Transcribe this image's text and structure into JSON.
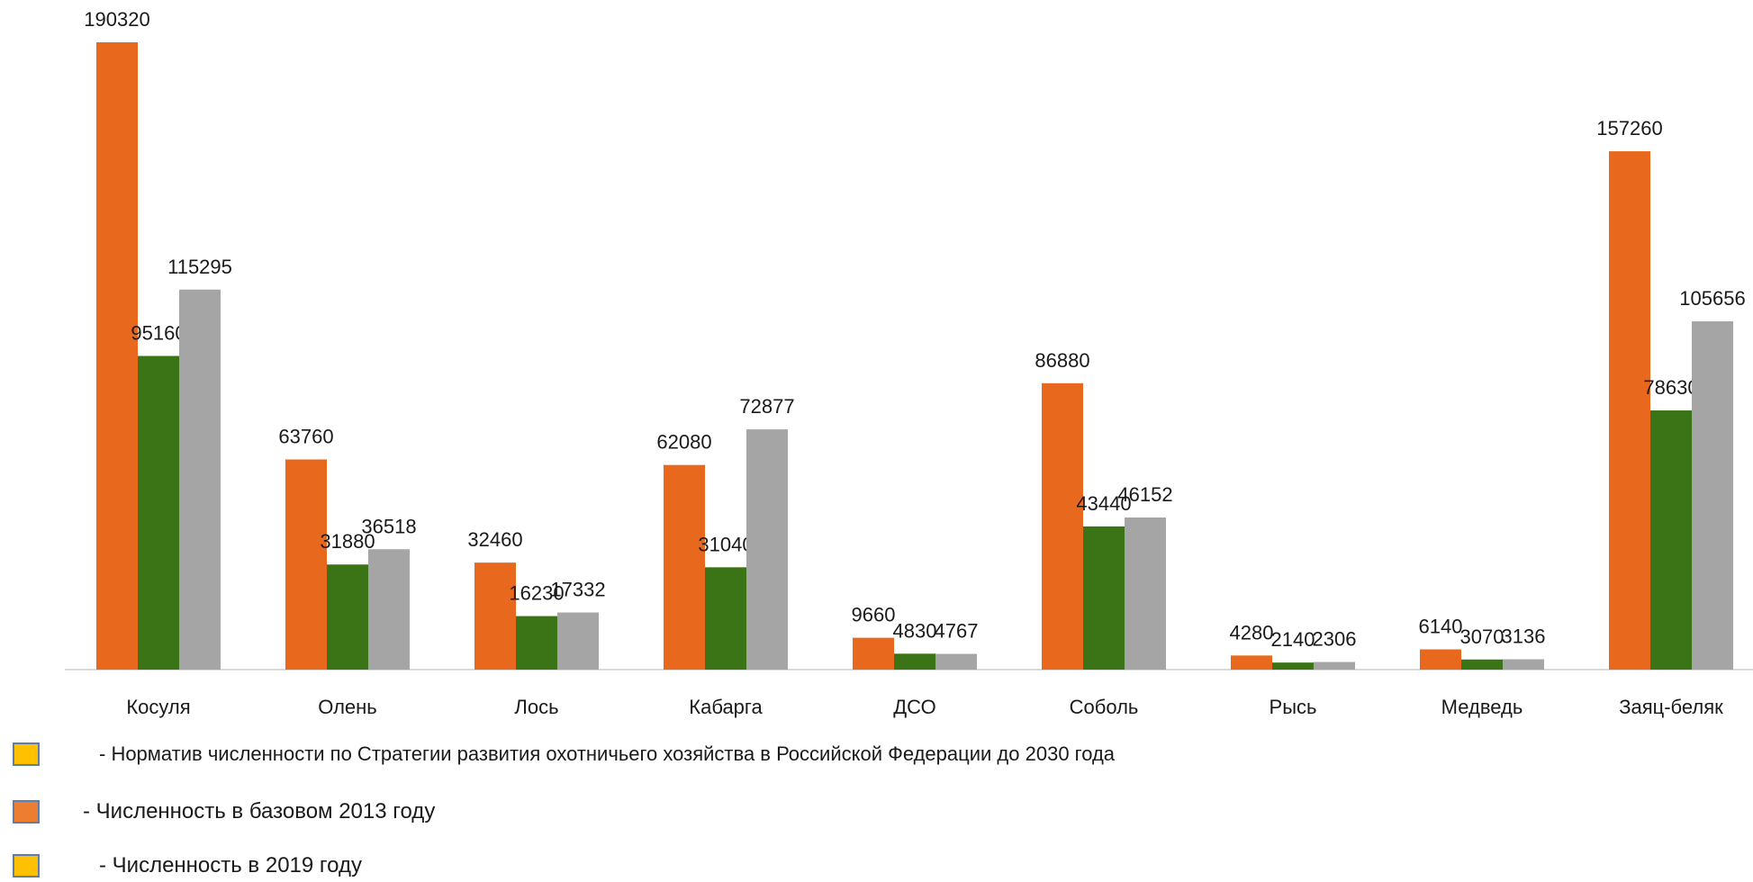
{
  "chart_data": {
    "type": "bar",
    "categories": [
      "Косуля",
      "Олень",
      "Лось",
      "Кабарга",
      "ДСО",
      "Соболь",
      "Рысь",
      "Медведь",
      "Заяц-беляк"
    ],
    "series": [
      {
        "values": [
          190320,
          63760,
          32460,
          62080,
          9660,
          86880,
          4280,
          6140,
          157260
        ],
        "color": "#e8691d"
      },
      {
        "values": [
          95160,
          31880,
          16230,
          31040,
          4830,
          43440,
          2140,
          3070,
          78630
        ],
        "color": "#3a7417"
      },
      {
        "values": [
          115295,
          36518,
          17332,
          72877,
          4767,
          46152,
          2306,
          3136,
          105656
        ],
        "color": "#a5a5a5"
      }
    ],
    "ylim": [
      0,
      190320
    ],
    "grid": false,
    "legend_position": "bottom-left"
  },
  "legend": [
    {
      "text": "- Норматив численности по Стратегии развития охотничьего хозяйства в Российской Федерации до 2030 года",
      "color": "#ffc000"
    },
    {
      "text": "- Численность в базовом 2013 году",
      "color": "#ed7d31"
    },
    {
      "text": "- Численность в 2019 году",
      "color": "#ffc000"
    }
  ]
}
